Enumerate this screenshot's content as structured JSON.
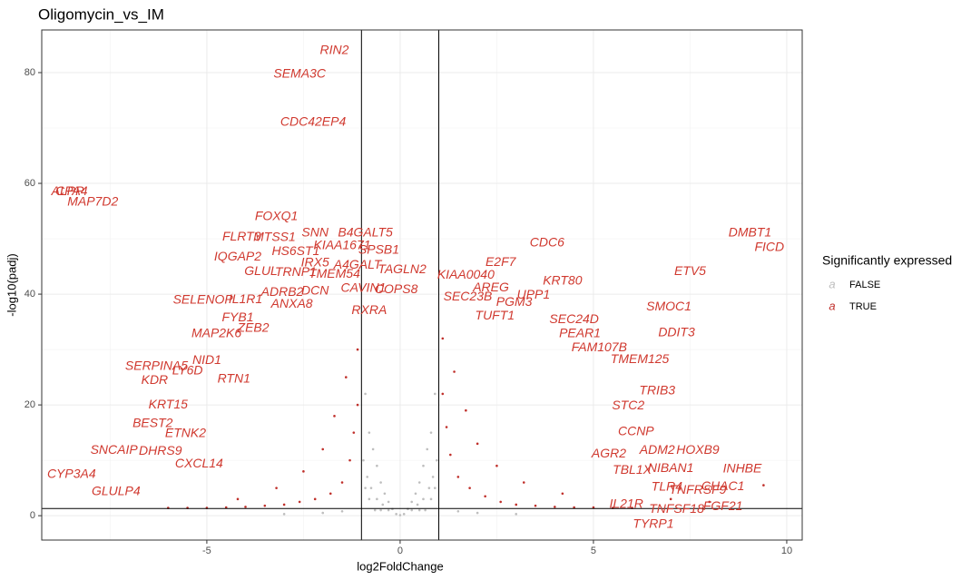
{
  "chart_data": {
    "type": "scatter",
    "title": "Oligomycin_vs_IM",
    "x_label": "log2FoldChange",
    "y_label": "-log10(padj)",
    "xlim": [
      -9.27,
      10.4
    ],
    "ylim": [
      -4.4,
      87.7
    ],
    "xticks": [
      -5,
      0,
      5,
      10
    ],
    "yticks": [
      0,
      20,
      40,
      60,
      80
    ],
    "minor_xticks": [
      -7.5,
      -2.5,
      2.5,
      7.5
    ],
    "minor_yticks": [
      10,
      30,
      50,
      70
    ],
    "grid": true,
    "vlines": [
      -1,
      1
    ],
    "hline": 1.3,
    "legend_title": "Significantly expressed",
    "legend_key_glyph": "a",
    "legend_position": "right",
    "label_color": "#d0392f",
    "series": [
      {
        "name": "FALSE",
        "color": "#bebebe",
        "x": [
          -0.9,
          -0.8,
          -0.7,
          -0.6,
          -0.5,
          -0.4,
          -0.3,
          -0.2,
          -0.1,
          0,
          0.1,
          0.2,
          0.3,
          0.4,
          0.5,
          0.6,
          0.7,
          0.8,
          0.9,
          -0.95,
          -0.85,
          -0.75,
          -0.6,
          -0.45,
          -0.3,
          0.3,
          0.45,
          0.6,
          0.75,
          0.85,
          0.95,
          -0.5,
          0.5,
          -0.8,
          0.8,
          -1.5,
          1.5,
          -2,
          2,
          -3,
          3,
          -0.9,
          0.9,
          -0.65,
          0.65
        ],
        "values": [
          22,
          15,
          12,
          9,
          6,
          4,
          2.5,
          1.2,
          0.3,
          0.1,
          0.3,
          1.2,
          2.5,
          4,
          6,
          9,
          12,
          15,
          22,
          10,
          7,
          5,
          3,
          2,
          1,
          1,
          2,
          3,
          5,
          7,
          10,
          1,
          1,
          3,
          3,
          0.8,
          0.8,
          0.5,
          0.5,
          0.3,
          0.3,
          5,
          5,
          1,
          1
        ]
      },
      {
        "name": "TRUE",
        "color": "#c0302b",
        "x": [
          -1.1,
          -1.2,
          -1.3,
          -1.5,
          -1.8,
          -2.2,
          -2.6,
          -3,
          -3.5,
          -4,
          -4.5,
          -5,
          -5.5,
          -6,
          -1.1,
          -1.4,
          -1.7,
          -2,
          -2.5,
          -3.2,
          -4.2,
          1.1,
          1.2,
          1.3,
          1.5,
          1.8,
          2.2,
          2.6,
          3,
          3.5,
          4,
          4.5,
          5,
          5.5,
          6,
          1.1,
          1.4,
          1.7,
          2,
          2.5,
          3.2,
          4.2,
          7,
          8,
          9.4
        ],
        "values": [
          20,
          15,
          10,
          6,
          4,
          3,
          2.5,
          2,
          1.8,
          1.6,
          1.5,
          1.4,
          1.4,
          1.4,
          30,
          25,
          18,
          12,
          8,
          5,
          3,
          22,
          16,
          11,
          7,
          5,
          3.5,
          2.5,
          2,
          1.8,
          1.6,
          1.5,
          1.5,
          1.4,
          1.4,
          32,
          26,
          19,
          13,
          9,
          6,
          4,
          3,
          2.5,
          5.5
        ]
      }
    ],
    "labels": [
      {
        "text": "RIN2",
        "x": -1.7,
        "y": 84
      },
      {
        "text": "SEMA3C",
        "x": -2.6,
        "y": 79.7
      },
      {
        "text": "CDC42EP4",
        "x": -2.25,
        "y": 71
      },
      {
        "text": "ALPP",
        "x": -8.6,
        "y": 58.5
      },
      {
        "text": "CPA4",
        "x": -8.5,
        "y": 58.5
      },
      {
        "text": "MAP7D2",
        "x": -7.95,
        "y": 56.6
      },
      {
        "text": "FOXQ1",
        "x": -3.2,
        "y": 54
      },
      {
        "text": "SNN",
        "x": -2.2,
        "y": 51
      },
      {
        "text": "B4GALT5",
        "x": -0.9,
        "y": 51
      },
      {
        "text": "FLRT3",
        "x": -4.1,
        "y": 50.3
      },
      {
        "text": "MTSS1",
        "x": -3.25,
        "y": 50.2
      },
      {
        "text": "HS6ST1",
        "x": -2.7,
        "y": 47.7
      },
      {
        "text": "KIAA1671",
        "x": -1.5,
        "y": 48.7
      },
      {
        "text": "SPSB1",
        "x": -0.55,
        "y": 47.9
      },
      {
        "text": "IQGAP2",
        "x": -4.2,
        "y": 46.7
      },
      {
        "text": "IRX5",
        "x": -2.2,
        "y": 45.6
      },
      {
        "text": "A4GALT",
        "x": -1.1,
        "y": 45.2
      },
      {
        "text": "TAGLN2",
        "x": 0.05,
        "y": 44.4
      },
      {
        "text": "GLUL",
        "x": -3.6,
        "y": 44.1
      },
      {
        "text": "TRNP1",
        "x": -2.7,
        "y": 43.9
      },
      {
        "text": "TMEM54",
        "x": -1.7,
        "y": 43.6
      },
      {
        "text": "ADRB2",
        "x": -3.05,
        "y": 40.3
      },
      {
        "text": "DCN",
        "x": -2.2,
        "y": 40.5
      },
      {
        "text": "CAVIN1",
        "x": -0.95,
        "y": 41
      },
      {
        "text": "COPS8",
        "x": -0.1,
        "y": 40.8
      },
      {
        "text": "IL1R1",
        "x": -4,
        "y": 39
      },
      {
        "text": "SELENOP",
        "x": -5.1,
        "y": 38.9
      },
      {
        "text": "ANXA8",
        "x": -2.8,
        "y": 38.2
      },
      {
        "text": "RXRA",
        "x": -0.8,
        "y": 37
      },
      {
        "text": "FYB1",
        "x": -4.2,
        "y": 35.7
      },
      {
        "text": "ZEB2",
        "x": -3.8,
        "y": 33.8
      },
      {
        "text": "MAP2K6",
        "x": -4.75,
        "y": 32.8
      },
      {
        "text": "NID1",
        "x": -5,
        "y": 28
      },
      {
        "text": "SERPINA5",
        "x": -6.3,
        "y": 26.9
      },
      {
        "text": "LY6D",
        "x": -5.5,
        "y": 26.1
      },
      {
        "text": "RTN1",
        "x": -4.3,
        "y": 24.6
      },
      {
        "text": "KDR",
        "x": -6.35,
        "y": 24.4
      },
      {
        "text": "KRT15",
        "x": -6,
        "y": 20
      },
      {
        "text": "BEST2",
        "x": -6.4,
        "y": 16.6
      },
      {
        "text": "ETNK2",
        "x": -5.55,
        "y": 14.8
      },
      {
        "text": "SNCAIP",
        "x": -7.4,
        "y": 11.8
      },
      {
        "text": "DHRS9",
        "x": -6.2,
        "y": 11.6
      },
      {
        "text": "CXCL14",
        "x": -5.2,
        "y": 9.3
      },
      {
        "text": "CYP3A4",
        "x": -8.5,
        "y": 7.4
      },
      {
        "text": "GLULP4",
        "x": -7.35,
        "y": 4.3
      },
      {
        "text": "CDC6",
        "x": 3.8,
        "y": 49.2
      },
      {
        "text": "E2F7",
        "x": 2.6,
        "y": 45.7
      },
      {
        "text": "KIAA0040",
        "x": 1.7,
        "y": 43.4
      },
      {
        "text": "AREG",
        "x": 2.35,
        "y": 41.1
      },
      {
        "text": "KRT80",
        "x": 4.2,
        "y": 42.3
      },
      {
        "text": "UPP1",
        "x": 3.45,
        "y": 39.8
      },
      {
        "text": "SEC23B",
        "x": 1.75,
        "y": 39.5
      },
      {
        "text": "PGM3",
        "x": 2.95,
        "y": 38.5
      },
      {
        "text": "TUFT1",
        "x": 2.45,
        "y": 36
      },
      {
        "text": "SEC24D",
        "x": 4.5,
        "y": 35.4
      },
      {
        "text": "PEAR1",
        "x": 4.65,
        "y": 32.8
      },
      {
        "text": "FAM107B",
        "x": 5.15,
        "y": 30.3
      },
      {
        "text": "TMEM125",
        "x": 6.2,
        "y": 28.2
      },
      {
        "text": "DMBT1",
        "x": 9.05,
        "y": 51
      },
      {
        "text": "FICD",
        "x": 9.55,
        "y": 48.4
      },
      {
        "text": "ETV5",
        "x": 7.5,
        "y": 44.1
      },
      {
        "text": "SMOC1",
        "x": 6.95,
        "y": 37.7
      },
      {
        "text": "DDIT3",
        "x": 7.15,
        "y": 33
      },
      {
        "text": "TRIB3",
        "x": 6.65,
        "y": 22.5
      },
      {
        "text": "STC2",
        "x": 5.9,
        "y": 19.8
      },
      {
        "text": "CCNP",
        "x": 6.1,
        "y": 15.1
      },
      {
        "text": "AGR2",
        "x": 5.4,
        "y": 11.1
      },
      {
        "text": "ADM2",
        "x": 6.65,
        "y": 11.8
      },
      {
        "text": "HOXB9",
        "x": 7.7,
        "y": 11.8
      },
      {
        "text": "TBL1X",
        "x": 6,
        "y": 8.2
      },
      {
        "text": "NIBAN1",
        "x": 7,
        "y": 8.5
      },
      {
        "text": "INHBE",
        "x": 8.85,
        "y": 8.4
      },
      {
        "text": "TLR4",
        "x": 6.9,
        "y": 5.1
      },
      {
        "text": "TNFRSF9",
        "x": 7.7,
        "y": 4.6
      },
      {
        "text": "CHAC1",
        "x": 8.35,
        "y": 5.2
      },
      {
        "text": "IL21R",
        "x": 5.85,
        "y": 2
      },
      {
        "text": "TNFSF18",
        "x": 7.15,
        "y": 1.1
      },
      {
        "text": "FGF21",
        "x": 8.35,
        "y": 1.6
      },
      {
        "text": "TYRP1",
        "x": 6.55,
        "y": -1.6
      }
    ]
  }
}
